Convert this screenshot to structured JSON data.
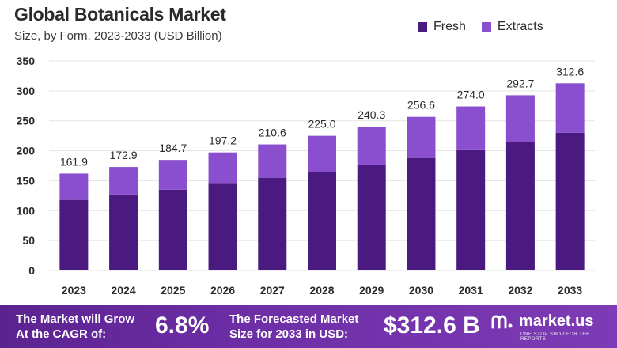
{
  "chart_data": {
    "type": "bar",
    "stacked": true,
    "title": "Global Botanicals Market",
    "subtitle": "Size, by Form, 2023-2033 (USD Billion)",
    "categories": [
      "2023",
      "2024",
      "2025",
      "2026",
      "2027",
      "2028",
      "2029",
      "2030",
      "2031",
      "2032",
      "2033"
    ],
    "series": [
      {
        "name": "Fresh",
        "color": "#4a1a80",
        "values": [
          118,
          127,
          135,
          145,
          155,
          165,
          177,
          188,
          201,
          214,
          230
        ]
      },
      {
        "name": "Extracts",
        "color": "#8a4fcf",
        "values": [
          43.9,
          45.9,
          49.7,
          52.2,
          55.6,
          60.0,
          63.3,
          68.6,
          73.0,
          78.7,
          82.6
        ]
      }
    ],
    "totals": [
      "161.9",
      "172.9",
      "184.7",
      "197.2",
      "210.6",
      "225.0",
      "240.3",
      "256.6",
      "274.0",
      "292.7",
      "312.6"
    ],
    "yticks": [
      "0",
      "50",
      "100",
      "150",
      "200",
      "250",
      "300",
      "350"
    ],
    "ylim": [
      0,
      350
    ],
    "grid": true,
    "legend_position": "top-right"
  },
  "footer": {
    "cagr_line1": "The Market will Grow",
    "cagr_line2": "At the CAGR of:",
    "cagr_value": "6.8%",
    "forecast_line1": "The Forecasted Market",
    "forecast_line2": "Size for 2033 in USD:",
    "forecast_value": "$312.6 B",
    "brand_name": "market.us",
    "brand_tagline": "ONE STOP SHOP FOR THE REPORTS"
  }
}
